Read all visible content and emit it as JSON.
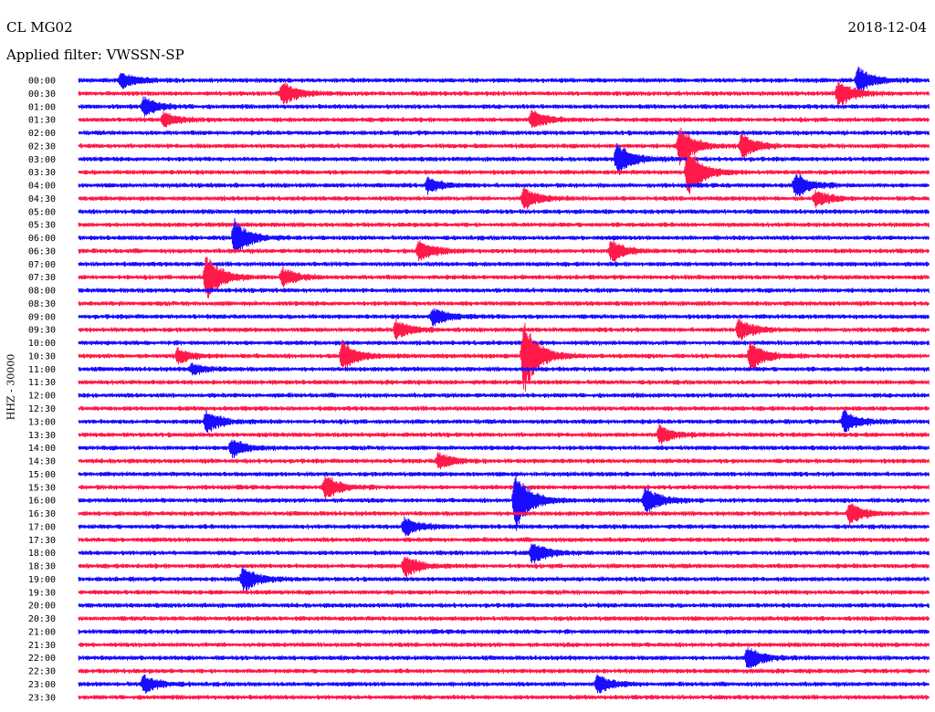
{
  "header": {
    "station": "CL MG02",
    "date": "2018-12-04",
    "filter": "Applied filter: VWSSN-SP"
  },
  "chart_data": {
    "type": "line",
    "title": "CL MG02",
    "ylabel": "HHZ - 30000",
    "row_labels": [
      "00:00",
      "00:30",
      "01:00",
      "01:30",
      "02:00",
      "02:30",
      "03:00",
      "03:30",
      "04:00",
      "04:30",
      "05:00",
      "05:30",
      "06:00",
      "06:30",
      "07:00",
      "07:30",
      "08:00",
      "08:30",
      "09:00",
      "09:30",
      "10:00",
      "10:30",
      "11:00",
      "11:30",
      "12:00",
      "12:30",
      "13:00",
      "13:30",
      "14:00",
      "14:30",
      "15:00",
      "15:30",
      "16:00",
      "16:30",
      "17:00",
      "17:30",
      "18:00",
      "18:30",
      "19:00",
      "19:30",
      "20:00",
      "20:30",
      "21:00",
      "21:30",
      "22:00",
      "22:30",
      "23:00",
      "23:30"
    ],
    "trace_colors": [
      "#1a0dff",
      "#ff1a4a"
    ],
    "events": [
      {
        "row": 0,
        "minute": 1.5,
        "amplitude": 9
      },
      {
        "row": 0,
        "minute": 27.5,
        "amplitude": 14
      },
      {
        "row": 1,
        "minute": 7.2,
        "amplitude": 13
      },
      {
        "row": 1,
        "minute": 26.8,
        "amplitude": 15
      },
      {
        "row": 2,
        "minute": 2.3,
        "amplitude": 10
      },
      {
        "row": 3,
        "minute": 3.0,
        "amplitude": 8
      },
      {
        "row": 3,
        "minute": 16.0,
        "amplitude": 11
      },
      {
        "row": 5,
        "minute": 21.2,
        "amplitude": 22
      },
      {
        "row": 5,
        "minute": 23.4,
        "amplitude": 14
      },
      {
        "row": 6,
        "minute": 19.0,
        "amplitude": 18
      },
      {
        "row": 7,
        "minute": 21.5,
        "amplitude": 28
      },
      {
        "row": 8,
        "minute": 25.3,
        "amplitude": 14
      },
      {
        "row": 8,
        "minute": 12.3,
        "amplitude": 8
      },
      {
        "row": 9,
        "minute": 15.7,
        "amplitude": 12
      },
      {
        "row": 9,
        "minute": 26.0,
        "amplitude": 9
      },
      {
        "row": 12,
        "minute": 5.5,
        "amplitude": 20
      },
      {
        "row": 13,
        "minute": 12.0,
        "amplitude": 12
      },
      {
        "row": 13,
        "minute": 18.8,
        "amplitude": 12
      },
      {
        "row": 15,
        "minute": 4.5,
        "amplitude": 26
      },
      {
        "row": 15,
        "minute": 7.2,
        "amplitude": 10
      },
      {
        "row": 18,
        "minute": 12.5,
        "amplitude": 10
      },
      {
        "row": 19,
        "minute": 11.2,
        "amplitude": 10
      },
      {
        "row": 19,
        "minute": 23.3,
        "amplitude": 12
      },
      {
        "row": 21,
        "minute": 9.3,
        "amplitude": 16
      },
      {
        "row": 21,
        "minute": 15.7,
        "amplitude": 42
      },
      {
        "row": 21,
        "minute": 23.7,
        "amplitude": 16
      },
      {
        "row": 21,
        "minute": 3.5,
        "amplitude": 8
      },
      {
        "row": 22,
        "minute": 4.0,
        "amplitude": 6
      },
      {
        "row": 26,
        "minute": 4.5,
        "amplitude": 12
      },
      {
        "row": 26,
        "minute": 27.0,
        "amplitude": 12
      },
      {
        "row": 27,
        "minute": 20.5,
        "amplitude": 10
      },
      {
        "row": 28,
        "minute": 5.4,
        "amplitude": 10
      },
      {
        "row": 29,
        "minute": 12.7,
        "amplitude": 9
      },
      {
        "row": 31,
        "minute": 8.7,
        "amplitude": 14
      },
      {
        "row": 32,
        "minute": 15.4,
        "amplitude": 34
      },
      {
        "row": 32,
        "minute": 20.0,
        "amplitude": 15
      },
      {
        "row": 33,
        "minute": 27.2,
        "amplitude": 12
      },
      {
        "row": 34,
        "minute": 11.5,
        "amplitude": 10
      },
      {
        "row": 36,
        "minute": 16.0,
        "amplitude": 12
      },
      {
        "row": 37,
        "minute": 11.5,
        "amplitude": 12
      },
      {
        "row": 38,
        "minute": 5.8,
        "amplitude": 14
      },
      {
        "row": 44,
        "minute": 23.6,
        "amplitude": 13
      },
      {
        "row": 46,
        "minute": 2.3,
        "amplitude": 10
      },
      {
        "row": 46,
        "minute": 18.3,
        "amplitude": 10
      }
    ]
  }
}
